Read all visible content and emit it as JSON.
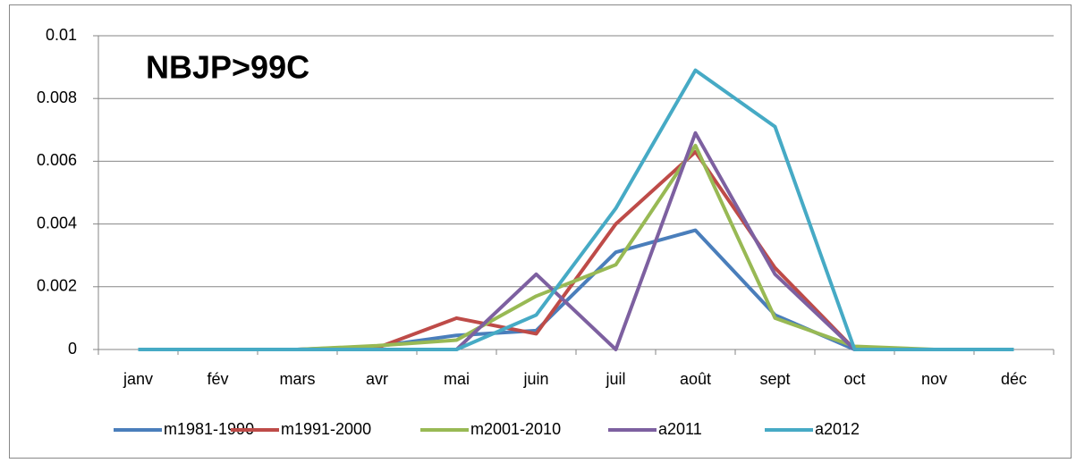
{
  "chart_data": {
    "type": "line",
    "title": "NBJP>99C",
    "categories": [
      "janv",
      "fév",
      "mars",
      "avr",
      "mai",
      "juin",
      "juil",
      "août",
      "sept",
      "oct",
      "nov",
      "déc"
    ],
    "series": [
      {
        "name": "m1981-1990",
        "color": "#4a7ebb",
        "values": [
          0,
          0,
          0,
          0.0001,
          0.00045,
          0.0006,
          0.0031,
          0.0038,
          0.0011,
          0,
          0,
          0
        ]
      },
      {
        "name": "m1991-2000",
        "color": "#be4b48",
        "values": [
          0,
          0,
          0,
          5e-05,
          0.001,
          0.0005,
          0.004,
          0.0063,
          0.0026,
          0,
          0,
          0
        ]
      },
      {
        "name": "m2001-2010",
        "color": "#98b954",
        "values": [
          0,
          0,
          0,
          0.00012,
          0.0003,
          0.0017,
          0.0027,
          0.0065,
          0.001,
          0.0001,
          0,
          0
        ]
      },
      {
        "name": "a2011",
        "color": "#7d60a0",
        "values": [
          0,
          0,
          0,
          0,
          0,
          0.0024,
          0,
          0.0069,
          0.0024,
          0,
          0,
          0
        ]
      },
      {
        "name": "a2012",
        "color": "#46aac5",
        "values": [
          0,
          0,
          0,
          0,
          0,
          0.0011,
          0.0045,
          0.0089,
          0.0071,
          0,
          0,
          0
        ]
      }
    ],
    "ylim": [
      0,
      0.01
    ],
    "yticks": [
      0,
      0.002,
      0.004,
      0.006,
      0.008,
      0.01
    ],
    "grid": true,
    "legend": "bottom"
  }
}
